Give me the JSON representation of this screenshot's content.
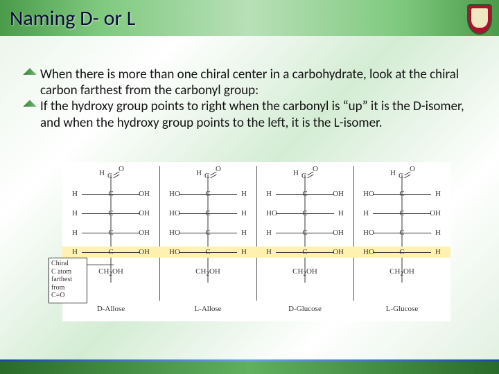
{
  "title": "Naming D- or L",
  "bullets": [
    "When there is more than one chiral center in a carbohydrate, look at the chiral carbon farthest from the carbonyl group:",
    "If the hydroxy group points to right when the carbonyl is “up” it is the D-isomer, and when the hydroxy group points to the left, it is the L-isomer."
  ],
  "annotation": {
    "lines": [
      "Chiral",
      "C atom",
      "farthest",
      "from",
      "C=O"
    ]
  },
  "highlight_color": "#fff2b0",
  "colors": {
    "title": "#0a0a3a",
    "header_gradient": [
      "#4a9b4a",
      "#7fc97f",
      "#b8e0b8"
    ],
    "body_text": "#111111",
    "diagram_bg": "#ffffff",
    "bond": "#333333",
    "footer_green": [
      "#2a6a2a",
      "#5fb05f"
    ],
    "footer_blue": [
      "#1a4aa0",
      "#6aa0e0"
    ]
  },
  "typography": {
    "title_fontsize": 30,
    "body_fontsize": 19,
    "diagram_fontsize": 11,
    "diagram_family": "Times New Roman"
  },
  "atom": {
    "H": "H",
    "C": "C",
    "O": "O",
    "OH": "OH",
    "HO": "HO",
    "CH2OH": "CH2OH"
  },
  "diagram": {
    "highlight_row_index": 3,
    "sugars": [
      {
        "name": "D-Allose",
        "rows": [
          {
            "l": "H",
            "r": "OH"
          },
          {
            "l": "H",
            "r": "OH"
          },
          {
            "l": "H",
            "r": "OH"
          },
          {
            "l": "H",
            "r": "OH"
          }
        ]
      },
      {
        "name": "L-Allose",
        "rows": [
          {
            "l": "HO",
            "r": "H"
          },
          {
            "l": "HO",
            "r": "H"
          },
          {
            "l": "HO",
            "r": "H"
          },
          {
            "l": "HO",
            "r": "H"
          }
        ]
      },
      {
        "name": "D-Glucose",
        "rows": [
          {
            "l": "H",
            "r": "OH"
          },
          {
            "l": "HO",
            "r": "H"
          },
          {
            "l": "H",
            "r": "OH"
          },
          {
            "l": "H",
            "r": "OH"
          }
        ]
      },
      {
        "name": "L-Glucose",
        "rows": [
          {
            "l": "HO",
            "r": "H"
          },
          {
            "l": "H",
            "r": "OH"
          },
          {
            "l": "HO",
            "r": "H"
          },
          {
            "l": "HO",
            "r": "H"
          }
        ]
      }
    ]
  }
}
